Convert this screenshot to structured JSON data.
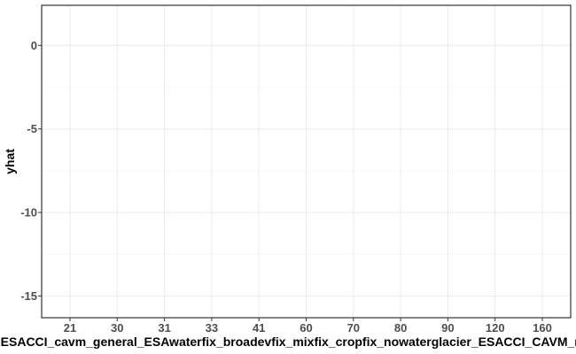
{
  "chart_data": {
    "type": "scatter",
    "title": "",
    "xlabel": "ESACCI_cavm_general_ESAwaterfix_broadevfix_mixfix_cropfix_nowaterglacier_ESACCI_CAVM_merge",
    "ylabel": "yhat",
    "categories": [
      "21",
      "30",
      "31",
      "33",
      "41",
      "60",
      "70",
      "80",
      "90",
      "120",
      "160"
    ],
    "y_ticks": [
      0,
      -5,
      -10,
      -15
    ],
    "y_tick_labels": [
      "0",
      "-5",
      "-10",
      "-15"
    ],
    "ylim": [
      -16.3,
      2.4
    ],
    "series": [],
    "grid": true,
    "legend": "none"
  }
}
